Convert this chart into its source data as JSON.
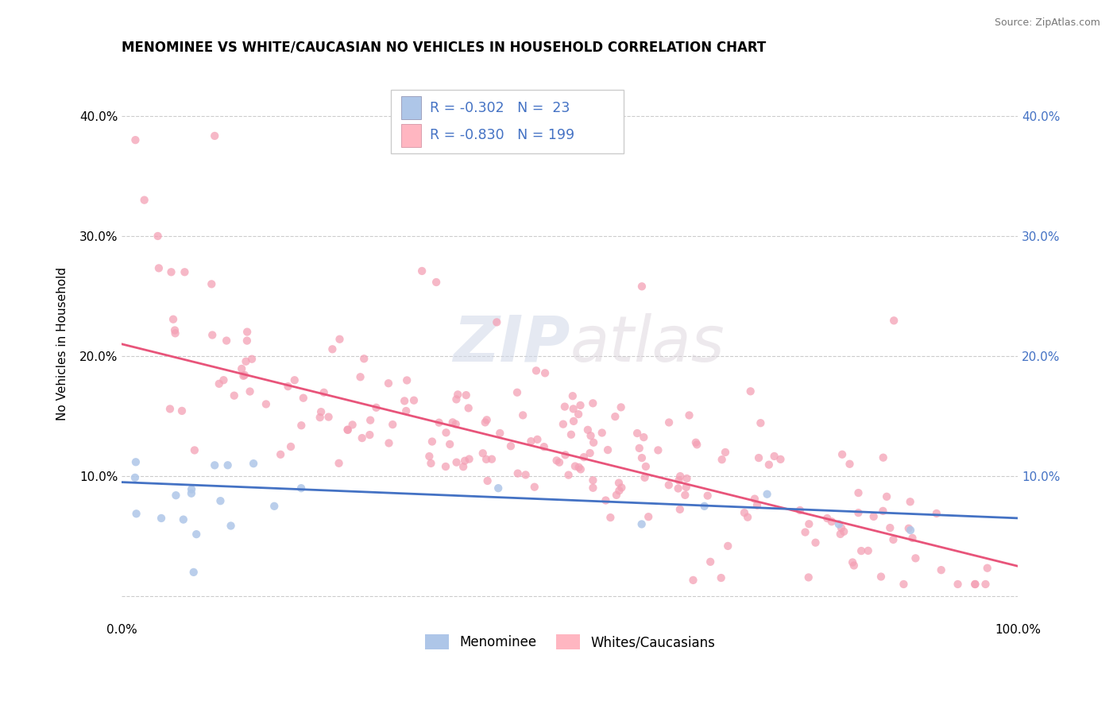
{
  "title": "MENOMINEE VS WHITE/CAUCASIAN NO VEHICLES IN HOUSEHOLD CORRELATION CHART",
  "source": "Source: ZipAtlas.com",
  "ylabel": "No Vehicles in Household",
  "xlim": [
    0,
    1
  ],
  "ylim": [
    -0.02,
    0.44
  ],
  "yticks": [
    0.0,
    0.1,
    0.2,
    0.3,
    0.4
  ],
  "ytick_labels_left": [
    "",
    "10.0%",
    "20.0%",
    "30.0%",
    "40.0%"
  ],
  "ytick_labels_right": [
    "",
    "10.0%",
    "20.0%",
    "30.0%",
    "40.0%"
  ],
  "xticks": [
    0.0,
    1.0
  ],
  "xtick_labels": [
    "0.0%",
    "100.0%"
  ],
  "color_blue_patch": "#aec6e8",
  "color_pink_patch": "#ffb6c1",
  "line_color_blue": "#4472c4",
  "line_color_pink": "#e8547a",
  "scatter_color_blue": "#aec6e8",
  "scatter_color_pink": "#f4a0b5",
  "watermark_zip": "ZIP",
  "watermark_atlas": "atlas",
  "label_menominee": "Menominee",
  "label_white": "Whites/Caucasians",
  "legend_text_color": "#4472c4",
  "legend_label_color": "#333333",
  "background_color": "#ffffff",
  "grid_color": "#cccccc",
  "title_fontsize": 12,
  "axis_label_fontsize": 11,
  "tick_fontsize": 11,
  "right_tick_color": "#4472c4"
}
